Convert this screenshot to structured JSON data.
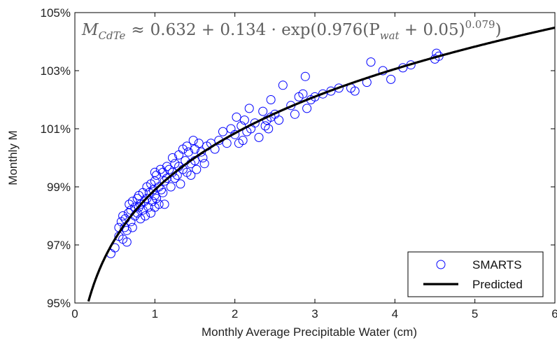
{
  "chart_data": {
    "type": "scatter",
    "xlabel": "Monthly Average Precipitable Water (cm)",
    "ylabel": "Monthly M",
    "xlim": [
      0,
      6
    ],
    "ylim": [
      95,
      105
    ],
    "xticks": [
      "0",
      "1",
      "2",
      "3",
      "4",
      "5",
      "6"
    ],
    "yticks": [
      "95%",
      "97%",
      "99%",
      "101%",
      "103%",
      "105%"
    ],
    "grid": false,
    "legend_position": "bottom-right",
    "equation": {
      "lhs": "M",
      "lhs_sub": "CdTe",
      "approx": "≈",
      "body": "0.632 + 0.134 · exp(0.976(P",
      "p_sub": "wat",
      "tail": " + 0.05)",
      "exponent": "0.079",
      "close": ")"
    },
    "model": {
      "a": 0.632,
      "b": 0.134,
      "c": 0.976,
      "d": 0.05,
      "e": 0.079
    },
    "series": [
      {
        "name": "SMARTS",
        "marker": "circle",
        "color": "#0000ff",
        "points": [
          [
            0.45,
            96.7
          ],
          [
            0.5,
            96.9
          ],
          [
            0.55,
            97.3
          ],
          [
            0.55,
            97.6
          ],
          [
            0.58,
            97.8
          ],
          [
            0.6,
            97.2
          ],
          [
            0.6,
            98.0
          ],
          [
            0.62,
            97.6
          ],
          [
            0.63,
            97.9
          ],
          [
            0.65,
            97.1
          ],
          [
            0.65,
            97.5
          ],
          [
            0.67,
            98.1
          ],
          [
            0.68,
            98.4
          ],
          [
            0.7,
            97.8
          ],
          [
            0.7,
            98.2
          ],
          [
            0.72,
            98.5
          ],
          [
            0.72,
            97.6
          ],
          [
            0.75,
            98.0
          ],
          [
            0.75,
            98.3
          ],
          [
            0.78,
            98.6
          ],
          [
            0.78,
            98.1
          ],
          [
            0.8,
            98.3
          ],
          [
            0.8,
            98.7
          ],
          [
            0.82,
            98.4
          ],
          [
            0.82,
            97.9
          ],
          [
            0.85,
            98.8
          ],
          [
            0.85,
            98.2
          ],
          [
            0.87,
            98.5
          ],
          [
            0.88,
            98.0
          ],
          [
            0.9,
            99.0
          ],
          [
            0.9,
            98.6
          ],
          [
            0.92,
            98.3
          ],
          [
            0.93,
            98.8
          ],
          [
            0.95,
            98.1
          ],
          [
            0.95,
            99.1
          ],
          [
            0.97,
            98.5
          ],
          [
            0.98,
            98.9
          ],
          [
            1.0,
            99.5
          ],
          [
            1.0,
            99.2
          ],
          [
            1.0,
            98.7
          ],
          [
            1.0,
            98.3
          ],
          [
            1.02,
            99.4
          ],
          [
            1.02,
            98.6
          ],
          [
            1.05,
            99.0
          ],
          [
            1.05,
            98.4
          ],
          [
            1.07,
            99.6
          ],
          [
            1.08,
            98.9
          ],
          [
            1.1,
            99.5
          ],
          [
            1.1,
            98.8
          ],
          [
            1.12,
            99.2
          ],
          [
            1.12,
            98.4
          ],
          [
            1.15,
            99.7
          ],
          [
            1.15,
            99.3
          ],
          [
            1.18,
            99.6
          ],
          [
            1.2,
            99.0
          ],
          [
            1.22,
            100.0
          ],
          [
            1.22,
            99.5
          ],
          [
            1.25,
            99.8
          ],
          [
            1.25,
            99.3
          ],
          [
            1.28,
            99.4
          ],
          [
            1.3,
            100.1
          ],
          [
            1.3,
            99.7
          ],
          [
            1.32,
            99.1
          ],
          [
            1.35,
            100.3
          ],
          [
            1.35,
            99.6
          ],
          [
            1.38,
            99.9
          ],
          [
            1.4,
            100.4
          ],
          [
            1.4,
            99.5
          ],
          [
            1.42,
            100.2
          ],
          [
            1.45,
            99.8
          ],
          [
            1.45,
            99.4
          ],
          [
            1.48,
            100.6
          ],
          [
            1.5,
            100.3
          ],
          [
            1.5,
            99.9
          ],
          [
            1.52,
            99.6
          ],
          [
            1.55,
            100.5
          ],
          [
            1.58,
            100.2
          ],
          [
            1.6,
            100.0
          ],
          [
            1.62,
            99.8
          ],
          [
            1.65,
            100.4
          ],
          [
            1.7,
            100.5
          ],
          [
            1.75,
            100.3
          ],
          [
            1.8,
            100.6
          ],
          [
            1.85,
            100.9
          ],
          [
            1.9,
            100.5
          ],
          [
            1.95,
            101.0
          ],
          [
            2.0,
            100.8
          ],
          [
            2.02,
            101.4
          ],
          [
            2.05,
            100.5
          ],
          [
            2.08,
            101.1
          ],
          [
            2.1,
            100.6
          ],
          [
            2.12,
            101.3
          ],
          [
            2.15,
            100.9
          ],
          [
            2.18,
            101.7
          ],
          [
            2.2,
            101.0
          ],
          [
            2.25,
            101.2
          ],
          [
            2.3,
            100.7
          ],
          [
            2.35,
            101.6
          ],
          [
            2.38,
            101.1
          ],
          [
            2.4,
            101.3
          ],
          [
            2.42,
            101.0
          ],
          [
            2.45,
            102.0
          ],
          [
            2.45,
            101.4
          ],
          [
            2.5,
            101.5
          ],
          [
            2.55,
            101.3
          ],
          [
            2.6,
            102.5
          ],
          [
            2.7,
            101.8
          ],
          [
            2.75,
            101.5
          ],
          [
            2.8,
            102.1
          ],
          [
            2.85,
            102.2
          ],
          [
            2.88,
            102.8
          ],
          [
            2.9,
            101.7
          ],
          [
            2.95,
            102.0
          ],
          [
            3.0,
            102.1
          ],
          [
            3.1,
            102.2
          ],
          [
            3.2,
            102.3
          ],
          [
            3.3,
            102.4
          ],
          [
            3.45,
            102.4
          ],
          [
            3.5,
            102.3
          ],
          [
            3.65,
            102.6
          ],
          [
            3.7,
            103.3
          ],
          [
            3.85,
            103.0
          ],
          [
            3.95,
            102.7
          ],
          [
            4.1,
            103.1
          ],
          [
            4.2,
            103.2
          ],
          [
            4.5,
            103.4
          ],
          [
            4.52,
            103.6
          ],
          [
            4.55,
            103.5
          ]
        ]
      },
      {
        "name": "Predicted",
        "marker": "line",
        "color": "#000000"
      }
    ]
  }
}
